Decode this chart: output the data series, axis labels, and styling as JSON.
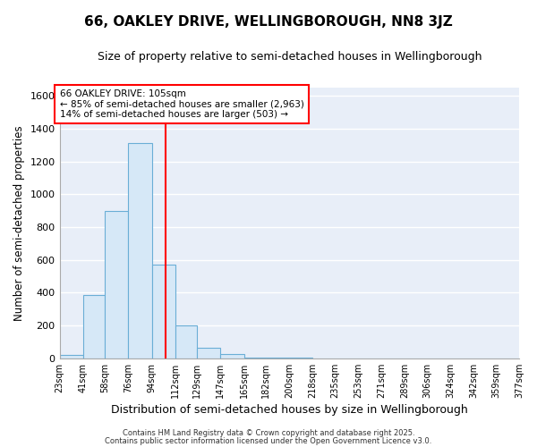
{
  "title": "66, OAKLEY DRIVE, WELLINGBOROUGH, NN8 3JZ",
  "subtitle": "Size of property relative to semi-detached houses in Wellingborough",
  "xlabel": "Distribution of semi-detached houses by size in Wellingborough",
  "ylabel": "Number of semi-detached properties",
  "bin_edges": [
    23,
    41,
    58,
    76,
    94,
    112,
    129,
    147,
    165,
    182,
    200,
    218,
    235,
    253,
    271,
    289,
    306,
    324,
    342,
    359,
    377
  ],
  "bar_heights": [
    20,
    385,
    900,
    1315,
    570,
    200,
    65,
    25,
    5,
    2,
    2,
    0,
    0,
    0,
    0,
    0,
    0,
    0,
    0,
    0
  ],
  "bar_color": "#d6e8f7",
  "bar_edgecolor": "#6aaed6",
  "vline_x": 105,
  "vline_color": "red",
  "annotation_title": "66 OAKLEY DRIVE: 105sqm",
  "annotation_line1": "← 85% of semi-detached houses are smaller (2,963)",
  "annotation_line2": "14% of semi-detached houses are larger (503) →",
  "annotation_box_edgecolor": "red",
  "annotation_box_facecolor": "white",
  "ylim": [
    0,
    1650
  ],
  "yticks": [
    0,
    200,
    400,
    600,
    800,
    1000,
    1200,
    1400,
    1600
  ],
  "xtick_labels": [
    "23sqm",
    "41sqm",
    "58sqm",
    "76sqm",
    "94sqm",
    "112sqm",
    "129sqm",
    "147sqm",
    "165sqm",
    "182sqm",
    "200sqm",
    "218sqm",
    "235sqm",
    "253sqm",
    "271sqm",
    "289sqm",
    "306sqm",
    "324sqm",
    "342sqm",
    "359sqm",
    "377sqm"
  ],
  "fig_background_color": "#ffffff",
  "plot_background_color": "#e8eef8",
  "grid_color": "#ffffff",
  "footer1": "Contains HM Land Registry data © Crown copyright and database right 2025.",
  "footer2": "Contains public sector information licensed under the Open Government Licence v3.0."
}
